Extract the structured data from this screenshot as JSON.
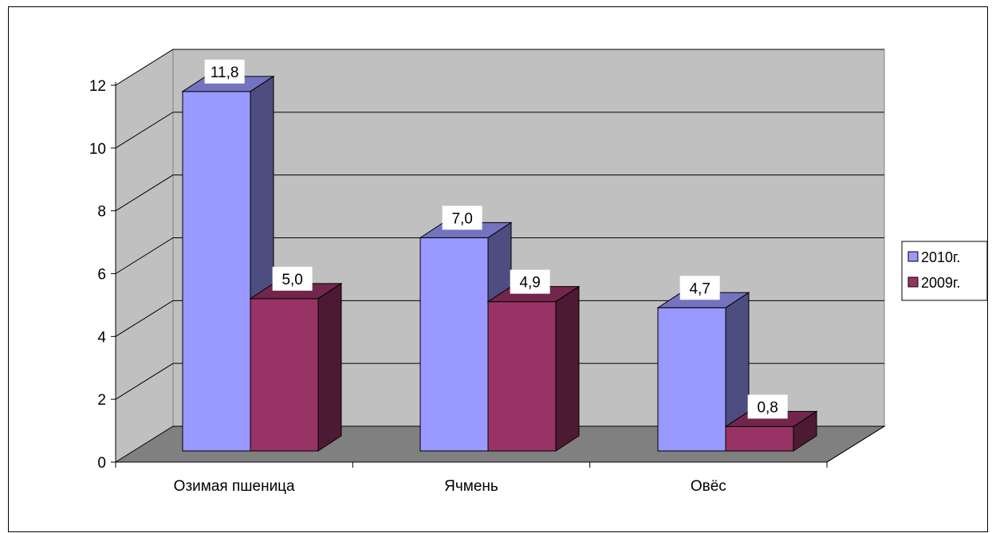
{
  "chart_data": {
    "type": "bar",
    "categories": [
      "Озимая пшеница",
      "Ячмень",
      "Овёс"
    ],
    "series": [
      {
        "name": "2010г.",
        "values": [
          11.8,
          7.0,
          4.7
        ],
        "labels": [
          "11,8",
          "7,0",
          "4,7"
        ],
        "color": "#9999ff"
      },
      {
        "name": "2009г.",
        "values": [
          5.0,
          4.9,
          0.8
        ],
        "labels": [
          "5,0",
          "4,9",
          "0,8"
        ],
        "color": "#993366"
      }
    ],
    "ylim": [
      0,
      12
    ],
    "yticks": [
      0,
      2,
      4,
      6,
      8,
      10,
      12
    ],
    "ytick_labels": [
      "0",
      "2",
      "4",
      "6",
      "8",
      "10",
      "12"
    ],
    "grid": true,
    "legend": "right",
    "wall_color": "#c0c0c0",
    "floor_color": "#808080"
  }
}
